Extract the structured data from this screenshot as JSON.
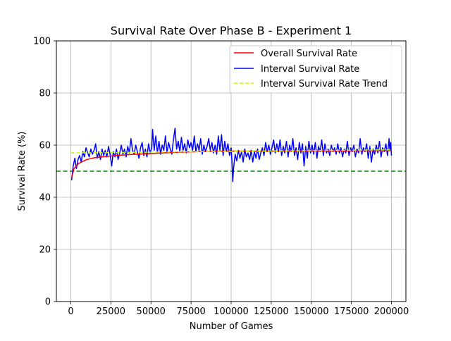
{
  "chart_data": {
    "type": "line",
    "title": "Survival Rate Over Phase B - Experiment 1",
    "xlabel": "Number of Games",
    "ylabel": "Survival Rate (%)",
    "xlim": [
      -9000,
      209000
    ],
    "ylim": [
      0,
      100
    ],
    "xticks": [
      0,
      25000,
      50000,
      75000,
      100000,
      125000,
      150000,
      175000,
      200000
    ],
    "yticks": [
      0,
      20,
      40,
      60,
      80,
      100
    ],
    "grid": true,
    "legend_position": "top-right",
    "reference_line": {
      "y": 50,
      "color": "#008000",
      "style": "dashed"
    },
    "series": [
      {
        "name": "Overall Survival Rate",
        "color": "#ff0000",
        "style": "solid",
        "points": [
          [
            500,
            47.5
          ],
          [
            2000,
            51
          ],
          [
            5000,
            53
          ],
          [
            10000,
            54.5
          ],
          [
            15000,
            55.2
          ],
          [
            20000,
            55.5
          ],
          [
            25000,
            55.8
          ],
          [
            30000,
            56.1
          ],
          [
            40000,
            56.5
          ],
          [
            50000,
            56.8
          ],
          [
            60000,
            57.1
          ],
          [
            70000,
            57.3
          ],
          [
            80000,
            57.5
          ],
          [
            90000,
            57.6
          ],
          [
            100000,
            57.7
          ],
          [
            110000,
            57.7
          ],
          [
            120000,
            57.7
          ],
          [
            130000,
            57.7
          ],
          [
            140000,
            57.8
          ],
          [
            150000,
            57.8
          ],
          [
            160000,
            57.8
          ],
          [
            170000,
            57.8
          ],
          [
            180000,
            57.9
          ],
          [
            190000,
            57.9
          ],
          [
            200000,
            57.9
          ]
        ]
      },
      {
        "name": "Interval Survival Rate",
        "color": "#0000ff",
        "style": "solid",
        "points": [
          [
            500,
            46.5
          ],
          [
            1500,
            52
          ],
          [
            2500,
            55
          ],
          [
            3500,
            51
          ],
          [
            4500,
            54.5
          ],
          [
            5500,
            56
          ],
          [
            6500,
            53.5
          ],
          [
            7500,
            57.5
          ],
          [
            8500,
            55.5
          ],
          [
            9500,
            59
          ],
          [
            10500,
            57
          ],
          [
            11500,
            55.5
          ],
          [
            12500,
            58.5
          ],
          [
            13500,
            56.5
          ],
          [
            14500,
            58
          ],
          [
            15500,
            60.5
          ],
          [
            16500,
            55
          ],
          [
            17500,
            57.5
          ],
          [
            18500,
            54.5
          ],
          [
            19500,
            58.5
          ],
          [
            20500,
            56
          ],
          [
            21500,
            58
          ],
          [
            22500,
            55.5
          ],
          [
            23500,
            59.5
          ],
          [
            24500,
            56.5
          ],
          [
            25500,
            52
          ],
          [
            26500,
            57.5
          ],
          [
            27500,
            55.5
          ],
          [
            28500,
            58.5
          ],
          [
            29500,
            54.5
          ],
          [
            30500,
            57
          ],
          [
            31500,
            60
          ],
          [
            32500,
            56.5
          ],
          [
            33500,
            58.5
          ],
          [
            34500,
            55.5
          ],
          [
            35500,
            59.5
          ],
          [
            36500,
            57
          ],
          [
            37500,
            62.5
          ],
          [
            38500,
            58
          ],
          [
            39500,
            56.5
          ],
          [
            40500,
            60
          ],
          [
            41500,
            57.5
          ],
          [
            42500,
            55
          ],
          [
            43500,
            59
          ],
          [
            44500,
            61
          ],
          [
            45500,
            56
          ],
          [
            46500,
            58.5
          ],
          [
            47500,
            55.5
          ],
          [
            48500,
            60.5
          ],
          [
            49500,
            57
          ],
          [
            50500,
            59
          ],
          [
            51000,
            66
          ],
          [
            52000,
            58
          ],
          [
            53000,
            63.5
          ],
          [
            54000,
            57
          ],
          [
            55000,
            61.5
          ],
          [
            56000,
            56.5
          ],
          [
            57000,
            60
          ],
          [
            58000,
            58
          ],
          [
            59000,
            63.5
          ],
          [
            60000,
            57
          ],
          [
            61000,
            61
          ],
          [
            62000,
            58.5
          ],
          [
            63000,
            56.5
          ],
          [
            64000,
            62
          ],
          [
            65000,
            66.5
          ],
          [
            66000,
            58.5
          ],
          [
            67000,
            61.5
          ],
          [
            68000,
            57.5
          ],
          [
            69000,
            63
          ],
          [
            70000,
            58
          ],
          [
            71000,
            60.5
          ],
          [
            72000,
            57
          ],
          [
            73000,
            62
          ],
          [
            74000,
            59
          ],
          [
            75000,
            61
          ],
          [
            76000,
            58
          ],
          [
            77000,
            63.5
          ],
          [
            78000,
            57.5
          ],
          [
            79000,
            60.5
          ],
          [
            80000,
            58
          ],
          [
            81000,
            62.5
          ],
          [
            82000,
            56.5
          ],
          [
            83000,
            60
          ],
          [
            84000,
            57.5
          ],
          [
            85000,
            59.5
          ],
          [
            86000,
            62.5
          ],
          [
            87000,
            58
          ],
          [
            88000,
            61
          ],
          [
            89000,
            57
          ],
          [
            90000,
            60
          ],
          [
            91000,
            56.5
          ],
          [
            92000,
            63.5
          ],
          [
            93000,
            58
          ],
          [
            94000,
            64
          ],
          [
            95000,
            56
          ],
          [
            96000,
            61.5
          ],
          [
            97000,
            57.5
          ],
          [
            98000,
            60.5
          ],
          [
            99000,
            56
          ],
          [
            100000,
            59
          ],
          [
            100500,
            54
          ],
          [
            101000,
            46
          ],
          [
            101500,
            51
          ],
          [
            102500,
            56.5
          ],
          [
            103500,
            54
          ],
          [
            104500,
            58
          ],
          [
            105500,
            55
          ],
          [
            106500,
            57.5
          ],
          [
            107500,
            53.5
          ],
          [
            108500,
            58.5
          ],
          [
            109500,
            55.5
          ],
          [
            110500,
            57
          ],
          [
            111500,
            54.5
          ],
          [
            112500,
            58
          ],
          [
            113500,
            53.5
          ],
          [
            114500,
            57.5
          ],
          [
            115500,
            55
          ],
          [
            116500,
            58.5
          ],
          [
            117500,
            54.5
          ],
          [
            118500,
            57
          ],
          [
            119500,
            59
          ],
          [
            120500,
            56
          ],
          [
            121500,
            61
          ],
          [
            122500,
            57.5
          ],
          [
            123500,
            60
          ],
          [
            124500,
            56.5
          ],
          [
            125500,
            59
          ],
          [
            126500,
            62
          ],
          [
            127500,
            57
          ],
          [
            128500,
            60.5
          ],
          [
            129500,
            57.5
          ],
          [
            130500,
            62
          ],
          [
            131500,
            56
          ],
          [
            132500,
            59.5
          ],
          [
            133500,
            57
          ],
          [
            134500,
            61.5
          ],
          [
            135500,
            55.5
          ],
          [
            136500,
            60
          ],
          [
            137500,
            57.5
          ],
          [
            138500,
            62.5
          ],
          [
            139500,
            56
          ],
          [
            140500,
            59
          ],
          [
            141500,
            54.5
          ],
          [
            142500,
            61
          ],
          [
            143500,
            57
          ],
          [
            144500,
            60.5
          ],
          [
            145500,
            52
          ],
          [
            146500,
            59.5
          ],
          [
            147500,
            55
          ],
          [
            148500,
            61.5
          ],
          [
            149500,
            57
          ],
          [
            150500,
            60
          ],
          [
            151500,
            56.5
          ],
          [
            152500,
            61
          ],
          [
            153500,
            55
          ],
          [
            154500,
            59.5
          ],
          [
            155500,
            57.5
          ],
          [
            156500,
            62
          ],
          [
            157500,
            56
          ],
          [
            158500,
            60.5
          ],
          [
            159500,
            57
          ],
          [
            160500,
            58.5
          ],
          [
            161500,
            56
          ],
          [
            162500,
            60
          ],
          [
            163500,
            57.5
          ],
          [
            164500,
            59
          ],
          [
            165500,
            56.5
          ],
          [
            166500,
            60.5
          ],
          [
            167500,
            57
          ],
          [
            168500,
            59
          ],
          [
            169500,
            55.5
          ],
          [
            170500,
            58.5
          ],
          [
            171500,
            57
          ],
          [
            172500,
            61.5
          ],
          [
            173500,
            56
          ],
          [
            174500,
            59
          ],
          [
            175500,
            57.5
          ],
          [
            176500,
            60
          ],
          [
            177500,
            55.5
          ],
          [
            178500,
            58.5
          ],
          [
            179500,
            57
          ],
          [
            180500,
            62.5
          ],
          [
            181500,
            56.5
          ],
          [
            182500,
            59
          ],
          [
            183500,
            57.5
          ],
          [
            184500,
            60.5
          ],
          [
            185500,
            55
          ],
          [
            186500,
            59.5
          ],
          [
            187500,
            53.5
          ],
          [
            188500,
            58.5
          ],
          [
            189500,
            56.5
          ],
          [
            190500,
            60
          ],
          [
            191500,
            57
          ],
          [
            192500,
            61.5
          ],
          [
            193500,
            55.5
          ],
          [
            194500,
            59
          ],
          [
            195500,
            57.5
          ],
          [
            196500,
            60.5
          ],
          [
            197500,
            56
          ],
          [
            198500,
            62.5
          ],
          [
            199000,
            58
          ],
          [
            199500,
            61
          ],
          [
            200000,
            56
          ]
        ]
      },
      {
        "name": "Interval Survival Rate Trend",
        "color": "#bfff00",
        "style": "dashed",
        "points": [
          [
            0,
            57
          ],
          [
            50000,
            57.3
          ],
          [
            100000,
            57.6
          ],
          [
            150000,
            57.9
          ],
          [
            200000,
            58.2
          ]
        ]
      }
    ]
  }
}
